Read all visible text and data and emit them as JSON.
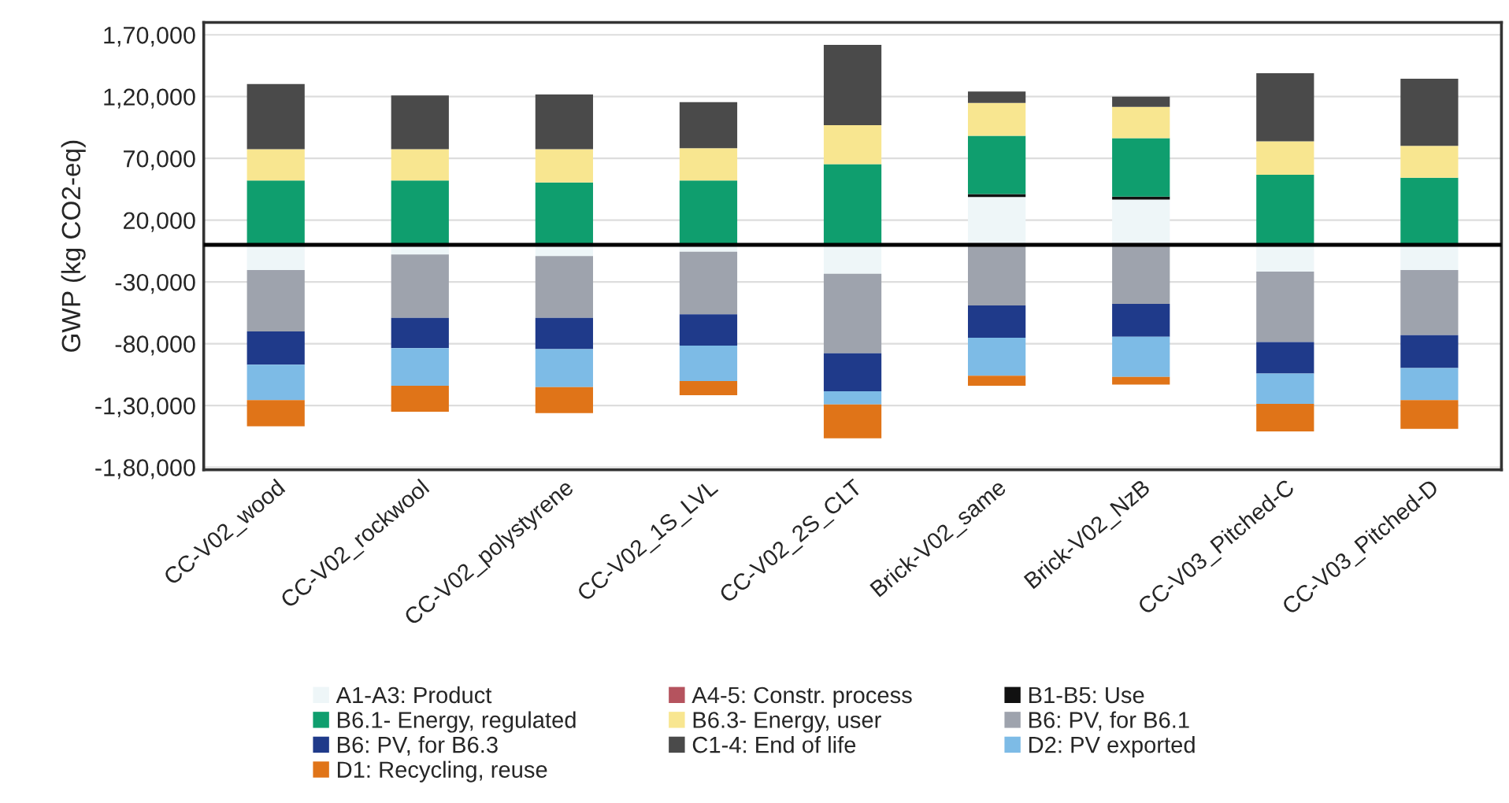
{
  "chart_data": {
    "type": "bar",
    "stacked": true,
    "ylabel": "GWP (kg CO2-eq)",
    "categories": [
      "CC-V02_wood",
      "CC-V02_rockwool",
      "CC-V02_polystyrene",
      "CC-V02_1S_LVL",
      "CC-V02_2S_CLT",
      "Brick-V02_same",
      "Brick-V02_NzB",
      "CC-V03_Pitched-C",
      "CC-V03_Pitched-D"
    ],
    "series": [
      {
        "name": "A1-A3: Product",
        "color": "#eef6f8",
        "values": [
          -20400,
          -7700,
          -9000,
          -5600,
          -23300,
          38700,
          36600,
          -21600,
          -20400
        ]
      },
      {
        "name": "A4-5: Constr. process",
        "color": "#b5535e",
        "values": [
          null,
          null,
          null,
          null,
          null,
          null,
          null,
          null,
          null
        ]
      },
      {
        "name": "B1-B5: Use",
        "color": "#111111",
        "values": [
          null,
          null,
          null,
          null,
          null,
          2500,
          2500,
          null,
          null
        ]
      },
      {
        "name": "B6.1- Energy, regulated",
        "color": "#0f9e6e",
        "values": [
          52200,
          52200,
          50500,
          52200,
          65300,
          47100,
          47300,
          56800,
          54300
        ]
      },
      {
        "name": "B6.3- Energy, user",
        "color": "#f8e690",
        "values": [
          25300,
          25300,
          27000,
          26100,
          31600,
          26600,
          25300,
          27100,
          25800
        ]
      },
      {
        "name": "B6: PV, for B6.1",
        "color": "#9ea3ad",
        "values": [
          -49700,
          -51400,
          -50100,
          -50600,
          -64500,
          -49000,
          -47700,
          -57000,
          -52600
        ]
      },
      {
        "name": "B6: PV, for B6.3",
        "color": "#1f3a8a",
        "values": [
          -26900,
          -24500,
          -25300,
          -25300,
          -30700,
          -26100,
          -26600,
          -25600,
          -26600
        ]
      },
      {
        "name": "C1-4: End of life",
        "color": "#4a4a4a",
        "values": [
          52700,
          43500,
          44300,
          37200,
          64900,
          9200,
          8300,
          55100,
          54400
        ]
      },
      {
        "name": "D2: PV exported",
        "color": "#7dbbe6",
        "values": [
          -28700,
          -30400,
          -30800,
          -28700,
          -10700,
          -30800,
          -32500,
          -24500,
          -26100
        ]
      },
      {
        "name": "D1: Recycling, reuse",
        "color": "#e07418",
        "values": [
          -21100,
          -21000,
          -21000,
          -11400,
          -27300,
          -8100,
          -6300,
          -22300,
          -23200
        ]
      }
    ],
    "ylim": [
      -182000,
      180000
    ],
    "yticks": [
      {
        "value": 170000,
        "label": "1,70,000"
      },
      {
        "value": 120000,
        "label": "1,20,000"
      },
      {
        "value": 70000,
        "label": "70,000"
      },
      {
        "value": 20000,
        "label": "20,000"
      },
      {
        "value": -30000,
        "label": "-30,000"
      },
      {
        "value": -80000,
        "label": "-80,000"
      },
      {
        "value": -130000,
        "label": "-1,30,000"
      },
      {
        "value": -180000,
        "label": "-1,80,000"
      }
    ],
    "ref_lines": [
      {
        "axis": "y",
        "value": 0,
        "color": "#000000"
      }
    ],
    "grid": "y",
    "legend": "bottom"
  }
}
